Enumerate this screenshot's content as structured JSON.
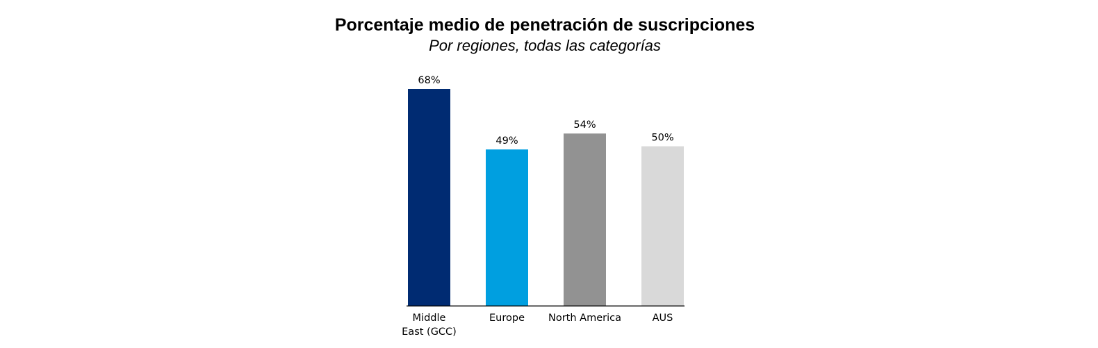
{
  "chart_data": {
    "type": "bar",
    "title": "Porcentaje medio de penetración de suscripciones",
    "subtitle": "Por regiones, todas las categorías",
    "categories": [
      "Middle East (GCC)",
      "Europe",
      "North America",
      "AUS"
    ],
    "category_label_lines": [
      [
        "Middle",
        "East (GCC)"
      ],
      [
        "Europe"
      ],
      [
        "North America"
      ],
      [
        "AUS"
      ]
    ],
    "values": [
      68,
      49,
      54,
      50
    ],
    "value_labels": [
      "68%",
      "49%",
      "54%",
      "50%"
    ],
    "unit": "%",
    "colors": [
      "#002B72",
      "#009FE0",
      "#929292",
      "#D9D9D9"
    ],
    "ylim": [
      0,
      68
    ],
    "grid": false,
    "legend": "none"
  }
}
